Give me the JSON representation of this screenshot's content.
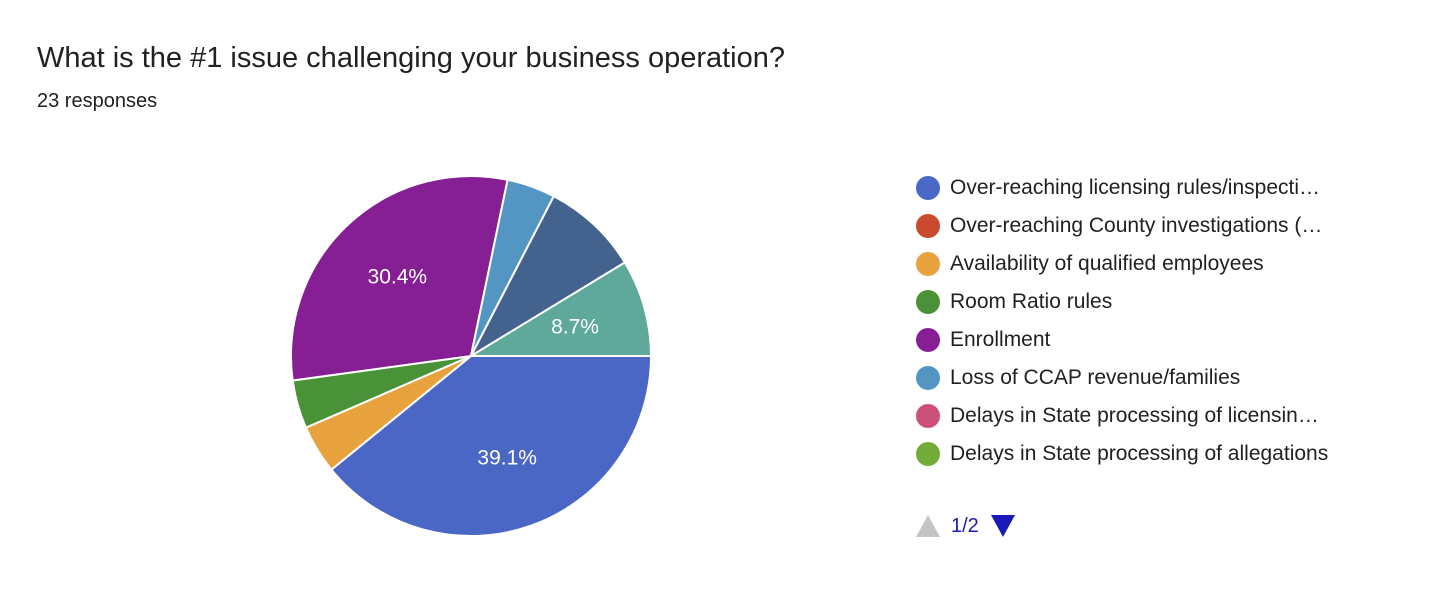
{
  "question": {
    "title": "What is the #1 issue challenging your business operation?",
    "responses_text": "23 responses"
  },
  "legend": {
    "items": [
      {
        "label": "Over-reaching licensing rules/inspecti…",
        "color": "#4a67c6"
      },
      {
        "label": "Over-reaching County investigations (…",
        "color": "#c94a2c"
      },
      {
        "label": "Availability of qualified employees",
        "color": "#e8a23d"
      },
      {
        "label": "Room Ratio rules",
        "color": "#4a9237"
      },
      {
        "label": "Enrollment",
        "color": "#851f93"
      },
      {
        "label": "Loss of CCAP revenue/families",
        "color": "#5396c4"
      },
      {
        "label": "Delays in State processing of licensin…",
        "color": "#cc5077"
      },
      {
        "label": "Delays in State processing of allegations",
        "color": "#73ab3a"
      }
    ]
  },
  "pager": {
    "page_text": "1/2",
    "prev_icon": "triangle-up-icon",
    "next_icon": "triangle-down-icon",
    "prev_color": "#c4c4c4",
    "next_color": "#1a1ab8"
  },
  "chart_data": {
    "type": "pie",
    "title": "What is the #1 issue challenging your business operation?",
    "subtitle": "23 responses",
    "total": 23,
    "start": "3 o'clock, clockwise",
    "slices": [
      {
        "label": "Over-reaching licensing rules/inspecti…",
        "count": 9,
        "percent": 39.1,
        "data_label": "39.1%",
        "color": "#4a67c6"
      },
      {
        "label": "Availability of qualified employees",
        "count": 1,
        "percent": 4.3,
        "data_label": "",
        "color": "#e8a23d"
      },
      {
        "label": "Room Ratio rules",
        "count": 1,
        "percent": 4.3,
        "data_label": "",
        "color": "#4a9237"
      },
      {
        "label": "Enrollment",
        "count": 7,
        "percent": 30.4,
        "data_label": "30.4%",
        "color": "#851f93"
      },
      {
        "label": "Loss of CCAP revenue/families",
        "count": 1,
        "percent": 4.3,
        "data_label": "",
        "color": "#5396c4"
      },
      {
        "label": "",
        "count": 2,
        "percent": 8.7,
        "data_label": "",
        "color": "#43628e"
      },
      {
        "label": "",
        "count": 2,
        "percent": 8.7,
        "data_label": "8.7%",
        "color": "#5ea999"
      }
    ]
  }
}
